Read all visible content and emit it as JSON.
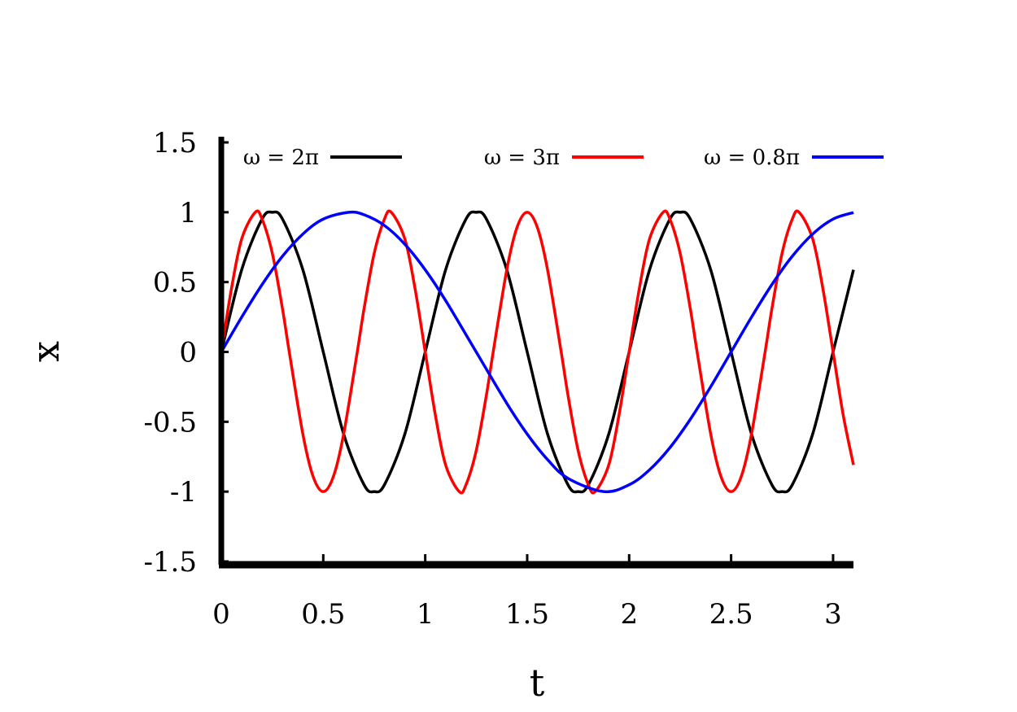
{
  "chart_data": {
    "type": "line",
    "title": "",
    "xlabel": "t",
    "ylabel": "x",
    "xlim": [
      0,
      3.1
    ],
    "ylim": [
      -1.5,
      1.5
    ],
    "xticks": [
      0,
      0.5,
      1,
      1.5,
      2,
      2.5,
      3
    ],
    "xtick_labels": [
      "0",
      "0.5",
      "1",
      "1.5",
      "2",
      "2.5",
      "3"
    ],
    "yticks": [
      -1.5,
      -1,
      -0.5,
      0,
      0.5,
      1,
      1.5
    ],
    "ytick_labels": [
      "-1.5",
      "-1",
      "-0.5",
      "0",
      "0.5",
      "1",
      "1.5"
    ],
    "grid": false,
    "legend_position": "top",
    "series": [
      {
        "name": "ω = 2π",
        "color": "#000000",
        "x": [
          0,
          0.1,
          0.2,
          0.25,
          0.3,
          0.4,
          0.5,
          0.6,
          0.7,
          0.75,
          0.8,
          0.9,
          1.0,
          1.1,
          1.2,
          1.25,
          1.3,
          1.4,
          1.5,
          1.6,
          1.7,
          1.75,
          1.8,
          1.9,
          2.0,
          2.1,
          2.2,
          2.25,
          2.3,
          2.4,
          2.5,
          2.6,
          2.7,
          2.75,
          2.8,
          2.9,
          3.0,
          3.1
        ],
        "y": [
          0,
          0.588,
          0.951,
          1.0,
          0.951,
          0.588,
          0.0,
          -0.588,
          -0.951,
          -1.0,
          -0.951,
          -0.588,
          0.0,
          0.588,
          0.951,
          1.0,
          0.951,
          0.588,
          0.0,
          -0.588,
          -0.951,
          -1.0,
          -0.951,
          -0.588,
          0.0,
          0.588,
          0.951,
          1.0,
          0.951,
          0.588,
          0.0,
          -0.588,
          -0.951,
          -1.0,
          -0.951,
          -0.588,
          0.0,
          0.588
        ]
      },
      {
        "name": "ω = 3π",
        "color": "#ff0000",
        "x": [
          0,
          0.05,
          0.1,
          0.1667,
          0.2,
          0.25,
          0.3,
          0.3333,
          0.4,
          0.45,
          0.5,
          0.55,
          0.6,
          0.6667,
          0.7,
          0.75,
          0.8,
          0.8333,
          0.9,
          0.95,
          1.0,
          1.05,
          1.1,
          1.1667,
          1.2,
          1.25,
          1.3,
          1.3333,
          1.4,
          1.45,
          1.5,
          1.55,
          1.6,
          1.6667,
          1.7,
          1.75,
          1.8,
          1.8333,
          1.9,
          1.95,
          2.0,
          2.05,
          2.1,
          2.1667,
          2.2,
          2.25,
          2.3,
          2.3333,
          2.4,
          2.45,
          2.5,
          2.55,
          2.6,
          2.6667,
          2.7,
          2.75,
          2.8,
          2.8333,
          2.9,
          2.95,
          3.0,
          3.05,
          3.1
        ],
        "y": [
          0,
          0.454,
          0.809,
          1.0,
          0.951,
          0.707,
          0.309,
          0.0,
          -0.588,
          -0.891,
          -1.0,
          -0.891,
          -0.588,
          0.0,
          0.309,
          0.707,
          0.951,
          1.0,
          0.809,
          0.454,
          0.0,
          -0.454,
          -0.809,
          -1.0,
          -0.951,
          -0.707,
          -0.309,
          0.0,
          0.588,
          0.891,
          1.0,
          0.891,
          0.588,
          0.0,
          -0.309,
          -0.707,
          -0.951,
          -1.0,
          -0.809,
          -0.454,
          0.0,
          0.454,
          0.809,
          1.0,
          0.951,
          0.707,
          0.309,
          0.0,
          -0.588,
          -0.891,
          -1.0,
          -0.891,
          -0.588,
          0.0,
          0.309,
          0.707,
          0.951,
          1.0,
          0.809,
          0.454,
          0.0,
          -0.454,
          -0.809
        ]
      },
      {
        "name": "ω = 0.8π",
        "color": "#0000ff",
        "x": [
          0,
          0.1,
          0.2,
          0.3,
          0.4,
          0.5,
          0.625,
          0.7,
          0.8,
          0.9,
          1.0,
          1.1,
          1.25,
          1.4,
          1.5,
          1.6,
          1.7,
          1.875,
          2.0,
          2.1,
          2.2,
          2.3,
          2.4,
          2.5,
          2.6,
          2.7,
          2.8,
          2.9,
          3.0,
          3.1
        ],
        "y": [
          0,
          0.249,
          0.482,
          0.685,
          0.844,
          0.951,
          1.0,
          0.982,
          0.905,
          0.771,
          0.588,
          0.368,
          0.0,
          -0.368,
          -0.588,
          -0.771,
          -0.905,
          -1.0,
          -0.951,
          -0.844,
          -0.685,
          -0.482,
          -0.249,
          0.0,
          0.249,
          0.482,
          0.685,
          0.844,
          0.951,
          0.998
        ]
      }
    ]
  }
}
